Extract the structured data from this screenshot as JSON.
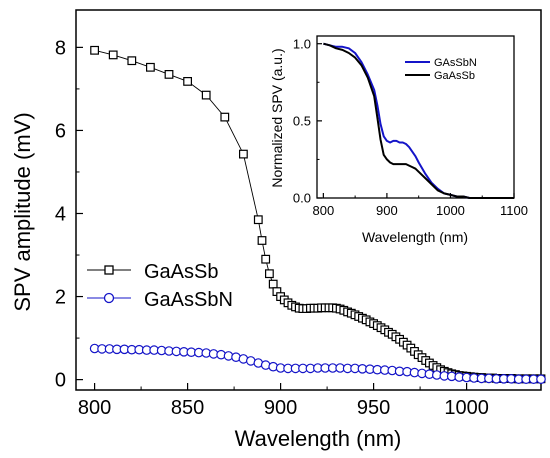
{
  "colors": {
    "ganasbn": "#1414c8",
    "gaassb": "#000000",
    "axis": "#000000"
  },
  "chart_data": [
    {
      "type": "scatter",
      "title": "",
      "xlabel": "Wavelength (nm)",
      "ylabel": "SPV amplitude (mV)",
      "xlim": [
        790,
        1040
      ],
      "ylim": [
        -0.25,
        8.9
      ],
      "xticks": [
        "800",
        "850",
        "900",
        "950",
        "1000"
      ],
      "yticks": [
        "0",
        "2",
        "4",
        "6",
        "8"
      ],
      "legend": {
        "placement": "left",
        "entries": [
          "GaAsSb",
          "GaAsSbN"
        ]
      },
      "series": [
        {
          "name": "GaAsSb",
          "marker": "square",
          "color": "#000000",
          "x": [
            800,
            810,
            820,
            830,
            840,
            850,
            860,
            870,
            880,
            888,
            890,
            892,
            894,
            896,
            898,
            900,
            902,
            904,
            906,
            908,
            910,
            912,
            914,
            916,
            918,
            920,
            922,
            924,
            926,
            928,
            930,
            932,
            934,
            936,
            938,
            940,
            942,
            944,
            946,
            948,
            950,
            952,
            954,
            956,
            958,
            960,
            962,
            964,
            966,
            968,
            970,
            972,
            974,
            976,
            978,
            980,
            982,
            984,
            986,
            988,
            990,
            992,
            994,
            996,
            998,
            1000,
            1002,
            1004,
            1006,
            1008,
            1010,
            1012,
            1014,
            1016,
            1018,
            1020,
            1022,
            1024,
            1026,
            1028,
            1030,
            1032,
            1034,
            1036,
            1038,
            1040
          ],
          "y": [
            7.93,
            7.82,
            7.68,
            7.52,
            7.35,
            7.18,
            6.85,
            6.32,
            5.43,
            3.85,
            3.35,
            2.9,
            2.55,
            2.3,
            2.12,
            2.0,
            1.92,
            1.85,
            1.79,
            1.75,
            1.72,
            1.71,
            1.71,
            1.72,
            1.72,
            1.72,
            1.73,
            1.73,
            1.73,
            1.73,
            1.72,
            1.7,
            1.67,
            1.63,
            1.6,
            1.56,
            1.52,
            1.48,
            1.44,
            1.39,
            1.35,
            1.3,
            1.25,
            1.2,
            1.14,
            1.09,
            1.03,
            0.97,
            0.9,
            0.83,
            0.76,
            0.68,
            0.6,
            0.53,
            0.46,
            0.4,
            0.34,
            0.29,
            0.24,
            0.2,
            0.17,
            0.14,
            0.12,
            0.1,
            0.09,
            0.08,
            0.07,
            0.06,
            0.05,
            0.05,
            0.04,
            0.04,
            0.04,
            0.03,
            0.03,
            0.03,
            0.03,
            0.03,
            0.02,
            0.02,
            0.02,
            0.02,
            0.02,
            0.02,
            0.02,
            0.02
          ]
        },
        {
          "name": "GaAsSbN",
          "marker": "circle",
          "color": "#1414c8",
          "x": [
            800,
            804,
            808,
            812,
            816,
            820,
            824,
            828,
            832,
            836,
            840,
            844,
            848,
            852,
            856,
            860,
            864,
            868,
            872,
            876,
            880,
            884,
            888,
            892,
            896,
            900,
            904,
            908,
            912,
            916,
            920,
            924,
            928,
            932,
            936,
            940,
            944,
            948,
            952,
            956,
            960,
            964,
            968,
            972,
            976,
            980,
            984,
            988,
            992,
            996,
            1000,
            1004,
            1008,
            1012,
            1016,
            1020,
            1024,
            1028,
            1032,
            1036,
            1040
          ],
          "y": [
            0.75,
            0.74,
            0.74,
            0.73,
            0.73,
            0.72,
            0.72,
            0.71,
            0.71,
            0.7,
            0.69,
            0.68,
            0.67,
            0.66,
            0.65,
            0.64,
            0.62,
            0.6,
            0.57,
            0.54,
            0.5,
            0.45,
            0.4,
            0.35,
            0.31,
            0.28,
            0.27,
            0.27,
            0.27,
            0.27,
            0.28,
            0.28,
            0.28,
            0.28,
            0.27,
            0.27,
            0.26,
            0.25,
            0.24,
            0.23,
            0.22,
            0.2,
            0.19,
            0.17,
            0.15,
            0.13,
            0.11,
            0.09,
            0.08,
            0.06,
            0.05,
            0.04,
            0.03,
            0.03,
            0.02,
            0.02,
            0.02,
            0.01,
            0.01,
            0.01,
            0.01
          ]
        }
      ]
    },
    {
      "type": "line",
      "title": "",
      "xlabel": "Wavelength (nm)",
      "ylabel": "Normalized SPV (a.u.)",
      "xlim": [
        790,
        1100
      ],
      "ylim": [
        0,
        1.05
      ],
      "xticks": [
        "800",
        "900",
        "1000",
        "1100"
      ],
      "yticks": [
        "0.0",
        "0.5",
        "1.0"
      ],
      "legend": {
        "placement": "top-right",
        "entries": [
          "GAsSbN",
          "GaAsSb"
        ]
      },
      "series": [
        {
          "name": "GAsSbN",
          "color": "#1414c8",
          "x": [
            800,
            810,
            820,
            830,
            840,
            850,
            860,
            870,
            880,
            885,
            890,
            895,
            900,
            905,
            910,
            915,
            920,
            925,
            930,
            935,
            940,
            945,
            950,
            960,
            970,
            980,
            990,
            1000,
            1010,
            1020,
            1030,
            1040,
            1050,
            1060,
            1070,
            1080,
            1090,
            1100
          ],
          "y": [
            1.0,
            0.99,
            0.98,
            0.98,
            0.97,
            0.94,
            0.88,
            0.8,
            0.7,
            0.6,
            0.48,
            0.4,
            0.37,
            0.36,
            0.37,
            0.37,
            0.36,
            0.36,
            0.35,
            0.33,
            0.3,
            0.27,
            0.23,
            0.16,
            0.1,
            0.06,
            0.03,
            0.02,
            0.01,
            0.01,
            0.0,
            0.0,
            0.0,
            0.0,
            0.0,
            0.0,
            0.0,
            0.0
          ]
        },
        {
          "name": "GaAsSb",
          "color": "#000000",
          "x": [
            800,
            810,
            820,
            830,
            840,
            850,
            860,
            870,
            880,
            885,
            890,
            895,
            900,
            905,
            910,
            915,
            920,
            925,
            930,
            935,
            940,
            945,
            950,
            960,
            970,
            980,
            990,
            1000,
            1010,
            1020,
            1030,
            1040,
            1050,
            1060,
            1070,
            1080,
            1090,
            1100
          ],
          "y": [
            1.0,
            0.99,
            0.97,
            0.96,
            0.94,
            0.91,
            0.86,
            0.78,
            0.66,
            0.52,
            0.38,
            0.28,
            0.25,
            0.23,
            0.22,
            0.22,
            0.22,
            0.22,
            0.22,
            0.21,
            0.2,
            0.19,
            0.17,
            0.13,
            0.09,
            0.05,
            0.03,
            0.02,
            0.01,
            0.01,
            0.0,
            0.0,
            0.0,
            0.0,
            0.0,
            0.0,
            0.0,
            0.0
          ]
        }
      ]
    }
  ]
}
